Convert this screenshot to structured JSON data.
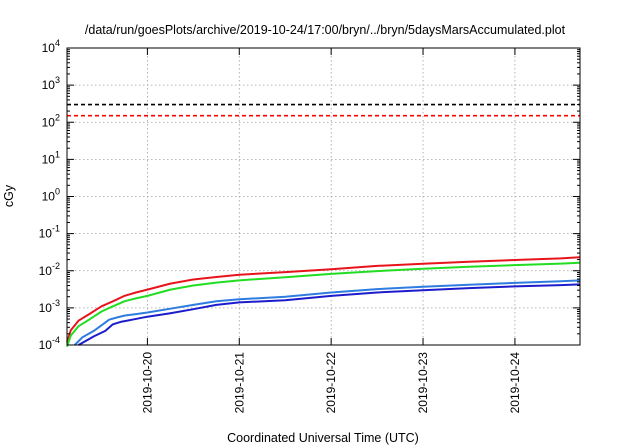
{
  "chart_data": {
    "type": "line",
    "title": "/data/run/goesPlots/archive/2019-10-24/17:00/bryn/../bryn/5daysMarsAccumulated.plot",
    "xlabel": "Coordinated Universal Time (UTC)",
    "ylabel": "cGy",
    "yscale": "log",
    "ylim": [
      0.0001,
      10000
    ],
    "xlim": [
      "2019-10-19T03:00",
      "2019-10-24T17:00"
    ],
    "grid": true,
    "x_ticks": [
      "2019-10-20",
      "2019-10-21",
      "2019-10-22",
      "2019-10-23",
      "2019-10-24"
    ],
    "y_ticks": [
      {
        "value": 0.0001,
        "base": "10",
        "exp": "-4"
      },
      {
        "value": 0.001,
        "base": "10",
        "exp": "-3"
      },
      {
        "value": 0.01,
        "base": "10",
        "exp": "-2"
      },
      {
        "value": 0.1,
        "base": "10",
        "exp": "-1"
      },
      {
        "value": 1,
        "base": "10",
        "exp": "0"
      },
      {
        "value": 10,
        "base": "10",
        "exp": "1"
      },
      {
        "value": 100,
        "base": "10",
        "exp": "2"
      },
      {
        "value": 1000,
        "base": "10",
        "exp": "3"
      },
      {
        "value": 10000,
        "base": "10",
        "exp": "4"
      }
    ],
    "hlines": [
      {
        "value": 300,
        "color": "#000000",
        "style": "dashed"
      },
      {
        "value": 150,
        "color": "#ff0000",
        "style": "dashed"
      }
    ],
    "series": [
      {
        "color": "#e8141c",
        "points": [
          [
            "2019-10-19T03:00",
            0.00012
          ],
          [
            "2019-10-19T04:00",
            0.00025
          ],
          [
            "2019-10-19T06:00",
            0.00045
          ],
          [
            "2019-10-19T09:00",
            0.0007
          ],
          [
            "2019-10-19T12:00",
            0.0011
          ],
          [
            "2019-10-19T15:00",
            0.0015
          ],
          [
            "2019-10-19T18:00",
            0.0021
          ],
          [
            "2019-10-19T21:00",
            0.0026
          ],
          [
            "2019-10-20T00:00",
            0.0031
          ],
          [
            "2019-10-20T06:00",
            0.0045
          ],
          [
            "2019-10-20T12:00",
            0.0058
          ],
          [
            "2019-10-20T18:00",
            0.0068
          ],
          [
            "2019-10-21T00:00",
            0.0078
          ],
          [
            "2019-10-21T12:00",
            0.0092
          ],
          [
            "2019-10-22T00:00",
            0.011
          ],
          [
            "2019-10-22T12:00",
            0.0135
          ],
          [
            "2019-10-23T00:00",
            0.0155
          ],
          [
            "2019-10-23T12:00",
            0.0175
          ],
          [
            "2019-10-24T00:00",
            0.0195
          ],
          [
            "2019-10-24T12:00",
            0.0215
          ],
          [
            "2019-10-24T17:00",
            0.0232
          ]
        ]
      },
      {
        "color": "#22dd22",
        "points": [
          [
            "2019-10-19T03:00",
            9e-05
          ],
          [
            "2019-10-19T04:00",
            0.00018
          ],
          [
            "2019-10-19T06:00",
            0.00032
          ],
          [
            "2019-10-19T09:00",
            0.0005
          ],
          [
            "2019-10-19T12:00",
            0.0008
          ],
          [
            "2019-10-19T15:00",
            0.0011
          ],
          [
            "2019-10-19T18:00",
            0.0015
          ],
          [
            "2019-10-19T21:00",
            0.0018
          ],
          [
            "2019-10-20T00:00",
            0.0021
          ],
          [
            "2019-10-20T06:00",
            0.0031
          ],
          [
            "2019-10-20T12:00",
            0.004
          ],
          [
            "2019-10-20T18:00",
            0.0048
          ],
          [
            "2019-10-21T00:00",
            0.0055
          ],
          [
            "2019-10-21T12:00",
            0.0067
          ],
          [
            "2019-10-22T00:00",
            0.0082
          ],
          [
            "2019-10-22T12:00",
            0.0098
          ],
          [
            "2019-10-23T00:00",
            0.0113
          ],
          [
            "2019-10-23T12:00",
            0.0128
          ],
          [
            "2019-10-24T00:00",
            0.0142
          ],
          [
            "2019-10-24T12:00",
            0.0156
          ],
          [
            "2019-10-24T17:00",
            0.0165
          ]
        ]
      },
      {
        "color": "#2f7ce0",
        "points": [
          [
            "2019-10-19T05:00",
            0.0001
          ],
          [
            "2019-10-19T07:00",
            0.00016
          ],
          [
            "2019-10-19T10:00",
            0.00024
          ],
          [
            "2019-10-19T12:00",
            0.00034
          ],
          [
            "2019-10-19T14:00",
            0.00048
          ],
          [
            "2019-10-19T16:00",
            0.00055
          ],
          [
            "2019-10-19T18:00",
            0.00062
          ],
          [
            "2019-10-19T21:00",
            0.00068
          ],
          [
            "2019-10-20T00:00",
            0.00075
          ],
          [
            "2019-10-20T06:00",
            0.00095
          ],
          [
            "2019-10-20T12:00",
            0.0012
          ],
          [
            "2019-10-20T18:00",
            0.0015
          ],
          [
            "2019-10-21T00:00",
            0.0017
          ],
          [
            "2019-10-21T12:00",
            0.002
          ],
          [
            "2019-10-22T00:00",
            0.0026
          ],
          [
            "2019-10-22T12:00",
            0.0032
          ],
          [
            "2019-10-23T00:00",
            0.0037
          ],
          [
            "2019-10-23T12:00",
            0.0042
          ],
          [
            "2019-10-24T00:00",
            0.0047
          ],
          [
            "2019-10-24T12:00",
            0.0052
          ],
          [
            "2019-10-24T17:00",
            0.0055
          ]
        ]
      },
      {
        "color": "#1c1ccc",
        "points": [
          [
            "2019-10-19T06:00",
            0.0001
          ],
          [
            "2019-10-19T08:00",
            0.00013
          ],
          [
            "2019-10-19T10:00",
            0.00017
          ],
          [
            "2019-10-19T13:00",
            0.00024
          ],
          [
            "2019-10-19T15:00",
            0.00036
          ],
          [
            "2019-10-19T17:00",
            0.00042
          ],
          [
            "2019-10-19T20:00",
            0.00048
          ],
          [
            "2019-10-20T00:00",
            0.00058
          ],
          [
            "2019-10-20T06:00",
            0.00072
          ],
          [
            "2019-10-20T12:00",
            0.00092
          ],
          [
            "2019-10-20T18:00",
            0.0012
          ],
          [
            "2019-10-21T00:00",
            0.0014
          ],
          [
            "2019-10-21T12:00",
            0.0016
          ],
          [
            "2019-10-22T00:00",
            0.0021
          ],
          [
            "2019-10-22T12:00",
            0.0026
          ],
          [
            "2019-10-23T00:00",
            0.003
          ],
          [
            "2019-10-23T12:00",
            0.0034
          ],
          [
            "2019-10-24T00:00",
            0.0038
          ],
          [
            "2019-10-24T12:00",
            0.0041
          ],
          [
            "2019-10-24T17:00",
            0.0043
          ]
        ]
      }
    ]
  }
}
